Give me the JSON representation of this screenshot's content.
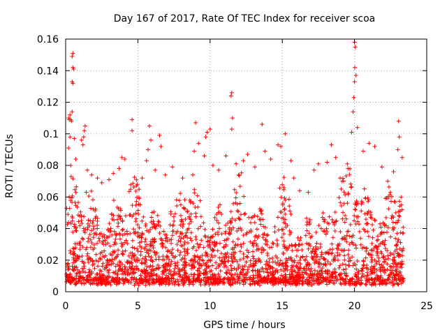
{
  "chart_data": {
    "type": "scatter",
    "title": "Day 167 of 2017, Rate Of TEC Index for receiver scoa",
    "xlabel": "GPS time / hours",
    "ylabel": "ROTI / TECUs",
    "xlim": [
      0,
      25
    ],
    "ylim": [
      0,
      0.16
    ],
    "x_ticks": [
      0,
      5,
      10,
      15,
      20,
      25
    ],
    "x_tick_labels": [
      "0",
      "5",
      "10",
      "15",
      "20",
      "25"
    ],
    "y_ticks": [
      0,
      0.02,
      0.04,
      0.06,
      0.08,
      0.1,
      0.12,
      0.14,
      0.16
    ],
    "y_tick_labels": [
      "0",
      "0.02",
      "0.04",
      "0.06",
      "0.08",
      "0.1",
      "0.12",
      "0.14",
      "0.16"
    ],
    "grid": true,
    "marker": "+",
    "color": "#ff0000",
    "data_x_range": [
      0,
      23.4
    ],
    "series": [
      {
        "points": [
          [
            0.2,
            0.11
          ],
          [
            0.25,
            0.109
          ],
          [
            0.3,
            0.112
          ],
          [
            0.35,
            0.109
          ],
          [
            0.4,
            0.108
          ],
          [
            0.45,
            0.114
          ],
          [
            0.45,
            0.149
          ],
          [
            0.5,
            0.151
          ],
          [
            0.5,
            0.142
          ],
          [
            0.55,
            0.141
          ],
          [
            0.45,
            0.133
          ],
          [
            0.5,
            0.132
          ],
          [
            0.3,
            0.098
          ],
          [
            0.2,
            0.091
          ],
          [
            0.35,
            0.08
          ],
          [
            0.6,
            0.097
          ],
          [
            0.7,
            0.084
          ],
          [
            1.1,
            0.096
          ],
          [
            1.2,
            0.093
          ],
          [
            1.3,
            0.102
          ],
          [
            1.35,
            0.105
          ],
          [
            1.25,
            0.098
          ],
          [
            1.5,
            0.077
          ],
          [
            1.8,
            0.074
          ],
          [
            2.2,
            0.072
          ],
          [
            2.5,
            0.069
          ],
          [
            3.0,
            0.071
          ],
          [
            3.3,
            0.075
          ],
          [
            3.7,
            0.078
          ],
          [
            3.9,
            0.085
          ],
          [
            4.1,
            0.084
          ],
          [
            4.6,
            0.109
          ],
          [
            4.6,
            0.102
          ],
          [
            4.9,
            0.067
          ],
          [
            5.3,
            0.072
          ],
          [
            5.6,
            0.083
          ],
          [
            5.7,
            0.09
          ],
          [
            5.8,
            0.105
          ],
          [
            5.9,
            0.096
          ],
          [
            6.2,
            0.077
          ],
          [
            6.5,
            0.099
          ],
          [
            6.6,
            0.092
          ],
          [
            6.9,
            0.074
          ],
          [
            7.4,
            0.079
          ],
          [
            8.1,
            0.072
          ],
          [
            8.8,
            0.074
          ],
          [
            8.9,
            0.089
          ],
          [
            9.0,
            0.107
          ],
          [
            9.2,
            0.094
          ],
          [
            9.6,
            0.086
          ],
          [
            9.7,
            0.098
          ],
          [
            9.8,
            0.101
          ],
          [
            10.0,
            0.103
          ],
          [
            10.2,
            0.08
          ],
          [
            10.6,
            0.077
          ],
          [
            11.1,
            0.086
          ],
          [
            11.45,
            0.124
          ],
          [
            11.5,
            0.126
          ],
          [
            11.55,
            0.11
          ],
          [
            11.5,
            0.103
          ],
          [
            11.8,
            0.081
          ],
          [
            12.3,
            0.083
          ],
          [
            12.6,
            0.087
          ],
          [
            13.1,
            0.079
          ],
          [
            13.6,
            0.106
          ],
          [
            13.8,
            0.089
          ],
          [
            14.2,
            0.084
          ],
          [
            14.7,
            0.093
          ],
          [
            14.9,
            0.092
          ],
          [
            15.2,
            0.1
          ],
          [
            15.6,
            0.083
          ],
          [
            15.8,
            0.072
          ],
          [
            16.2,
            0.064
          ],
          [
            16.8,
            0.063
          ],
          [
            17.2,
            0.077
          ],
          [
            17.5,
            0.081
          ],
          [
            18.1,
            0.082
          ],
          [
            18.4,
            0.093
          ],
          [
            18.7,
            0.085
          ],
          [
            19.0,
            0.072
          ],
          [
            19.5,
            0.081
          ],
          [
            19.8,
            0.101
          ],
          [
            19.9,
            0.114
          ],
          [
            19.95,
            0.123
          ],
          [
            20.0,
            0.133
          ],
          [
            20.02,
            0.142
          ],
          [
            20.05,
            0.155
          ],
          [
            20.0,
            0.158
          ],
          [
            20.1,
            0.137
          ],
          [
            20.2,
            0.104
          ],
          [
            20.6,
            0.089
          ],
          [
            21.0,
            0.094
          ],
          [
            21.4,
            0.092
          ],
          [
            21.9,
            0.079
          ],
          [
            22.3,
            0.07
          ],
          [
            22.7,
            0.076
          ],
          [
            23.0,
            0.09
          ],
          [
            23.05,
            0.108
          ],
          [
            23.1,
            0.098
          ],
          [
            23.3,
            0.085
          ]
        ]
      }
    ]
  }
}
